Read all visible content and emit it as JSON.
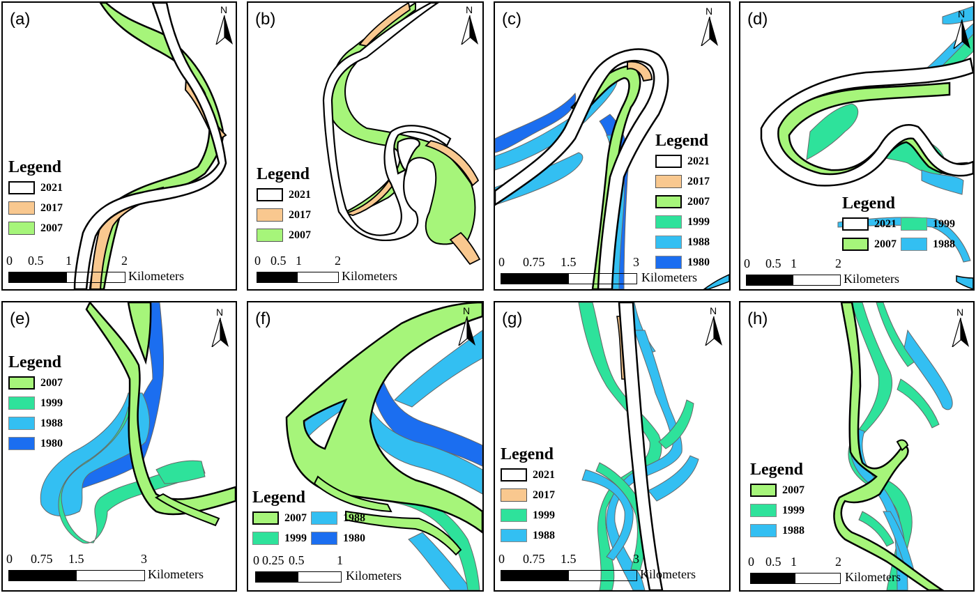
{
  "colors": {
    "y2021": "#ffffff",
    "y2017": "#f9c88f",
    "y2007": "#a6f57a",
    "y1999": "#2ee29b",
    "y1988": "#33bff2",
    "y1980": "#1b6ef0"
  },
  "scale_unit": "Kilometers",
  "north_label": "N",
  "legend_title": "Legend",
  "panels": [
    {
      "label": "(a)",
      "legend": [
        "2021",
        "2017",
        "2007"
      ],
      "scale_ticks": [
        "0",
        "0.5",
        "1",
        "2"
      ]
    },
    {
      "label": "(b)",
      "legend": [
        "2021",
        "2017",
        "2007"
      ],
      "scale_ticks": [
        "0",
        "0.5",
        "1",
        "2"
      ]
    },
    {
      "label": "(c)",
      "legend": [
        "2021",
        "2017",
        "2007",
        "1999",
        "1988",
        "1980"
      ],
      "scale_ticks": [
        "0",
        "0.75",
        "1.5",
        "3"
      ]
    },
    {
      "label": "(d)",
      "legend": [
        "2021",
        "1999",
        "2007",
        "1988"
      ],
      "scale_ticks": [
        "0",
        "0.5",
        "1",
        "2"
      ]
    },
    {
      "label": "(e)",
      "legend": [
        "2007",
        "1999",
        "1988",
        "1980"
      ],
      "scale_ticks": [
        "0",
        "0.75",
        "1.5",
        "3"
      ]
    },
    {
      "label": "(f)",
      "legend": [
        "2007",
        "1988",
        "1999",
        "1980"
      ],
      "scale_ticks": [
        "0",
        "0.25",
        "0.5",
        "1"
      ]
    },
    {
      "label": "(g)",
      "legend": [
        "2021",
        "2017",
        "1999",
        "1988"
      ],
      "scale_ticks": [
        "0",
        "0.75",
        "1.5",
        "3"
      ]
    },
    {
      "label": "(h)",
      "legend": [
        "2007",
        "1999",
        "1988"
      ],
      "scale_ticks": [
        "0",
        "0.5",
        "1",
        "2"
      ]
    }
  ]
}
